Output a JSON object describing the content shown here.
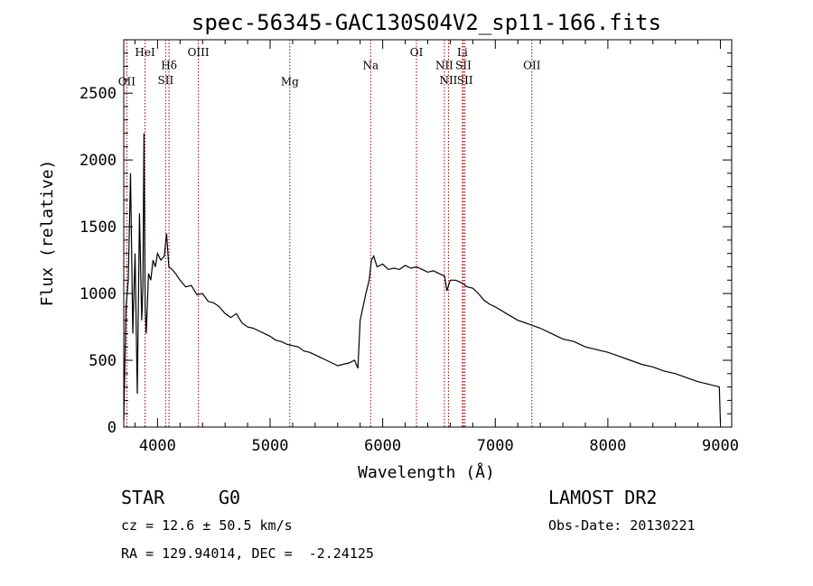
{
  "chart_data": {
    "type": "line",
    "title": "spec-56345-GAC130S04V2_sp11-166.fits",
    "xlabel": "Wavelength (Å)",
    "ylabel": "Flux (relative)",
    "xlim": [
      3700,
      9100
    ],
    "ylim": [
      0,
      2900
    ],
    "x_ticks": [
      4000,
      5000,
      6000,
      7000,
      8000,
      9000
    ],
    "y_ticks": [
      0,
      500,
      1000,
      1500,
      2000,
      2500
    ],
    "grid": false,
    "line_color": "#000000",
    "marker_color": "#990000",
    "series": [
      {
        "x": [
          3700,
          3720,
          3740,
          3760,
          3780,
          3800,
          3820,
          3840,
          3860,
          3870,
          3880,
          3890,
          3900,
          3920,
          3940,
          3960,
          3980,
          4000,
          4030,
          4060,
          4080,
          4100,
          4130,
          4160,
          4200,
          4250,
          4300,
          4350,
          4400,
          4450,
          4500,
          4550,
          4600,
          4650,
          4700,
          4750,
          4800,
          4850,
          4900,
          4950,
          5000,
          5050,
          5100,
          5150,
          5200,
          5250,
          5300,
          5350,
          5400,
          5450,
          5500,
          5550,
          5600,
          5650,
          5700,
          5750,
          5780,
          5800,
          5830,
          5850,
          5880,
          5900,
          5920,
          5950,
          6000,
          6050,
          6100,
          6150,
          6200,
          6250,
          6300,
          6350,
          6400,
          6450,
          6500,
          6550,
          6570,
          6600,
          6650,
          6700,
          6750,
          6800,
          6850,
          6900,
          6950,
          7000,
          7100,
          7200,
          7300,
          7400,
          7500,
          7600,
          7700,
          7800,
          7900,
          8000,
          8100,
          8200,
          8300,
          8400,
          8500,
          8600,
          8700,
          8800,
          8900,
          8990,
          9000
        ],
        "y": [
          50,
          900,
          1100,
          1900,
          700,
          1300,
          250,
          1600,
          800,
          1050,
          2200,
          900,
          700,
          1150,
          1100,
          1250,
          1200,
          1300,
          1250,
          1280,
          1450,
          1200,
          1180,
          1150,
          1100,
          1050,
          1060,
          990,
          1000,
          940,
          930,
          900,
          850,
          820,
          850,
          780,
          750,
          740,
          720,
          700,
          680,
          650,
          640,
          620,
          610,
          600,
          570,
          560,
          540,
          520,
          500,
          480,
          460,
          470,
          480,
          500,
          440,
          800,
          920,
          1000,
          1100,
          1250,
          1280,
          1200,
          1220,
          1180,
          1190,
          1180,
          1210,
          1190,
          1200,
          1180,
          1160,
          1170,
          1150,
          1130,
          1020,
          1100,
          1100,
          1080,
          1050,
          1040,
          1000,
          950,
          920,
          900,
          850,
          800,
          770,
          740,
          700,
          660,
          640,
          600,
          580,
          560,
          530,
          500,
          470,
          450,
          420,
          400,
          370,
          340,
          320,
          300,
          30
        ]
      }
    ],
    "lines": [
      {
        "name": "OII",
        "x": 3727,
        "label_y": 2560
      },
      {
        "name": "HeI",
        "x": 3889,
        "label_y": 2780
      },
      {
        "name": "Hδ",
        "x": 4102,
        "label_y": 2680
      },
      {
        "name": "SII",
        "x": 4072,
        "label_y": 2570
      },
      {
        "name": "OIII",
        "x": 4363,
        "label_y": 2780
      },
      {
        "name": "Mg",
        "x": 5175,
        "label_y": 2560
      },
      {
        "name": "Na",
        "x": 5893,
        "label_y": 2680
      },
      {
        "name": "OI",
        "x": 6300,
        "label_y": 2780
      },
      {
        "name": "NII",
        "x": 6548,
        "label_y": 2680
      },
      {
        "name": "NII",
        "x": 6584,
        "label_y": 2570
      },
      {
        "name": "Li",
        "x": 6708,
        "label_y": 2780
      },
      {
        "name": "SII",
        "x": 6717,
        "label_y": 2680
      },
      {
        "name": "SII",
        "x": 6731,
        "label_y": 2570
      },
      {
        "name": "OII",
        "x": 7325,
        "label_y": 2680
      }
    ]
  },
  "footer": {
    "star_type": "STAR",
    "subclass": "G0",
    "cz": "cz = 12.6 ± 50.5 km/s",
    "ra_dec": "RA = 129.94014, DEC =  -2.24125",
    "survey": "LAMOST DR2",
    "obs_date": "Obs-Date: 20130221"
  }
}
